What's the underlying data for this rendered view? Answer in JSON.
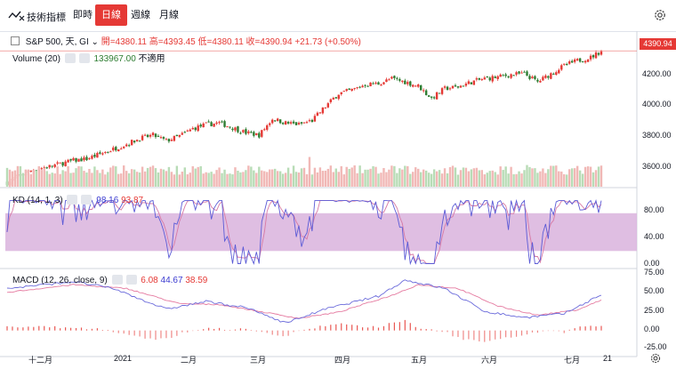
{
  "toolbar": {
    "indicators_label": "技術指標",
    "timeframes": [
      "即時",
      "日線",
      "週線",
      "月線"
    ],
    "active_timeframe": "日線"
  },
  "main_legend": {
    "symbol": "S&P 500, 天, GI",
    "open": "開=4380.11",
    "high": "高=4393.45",
    "low": "低=4380.11",
    "close": "收=4390.94",
    "change": "+21.73 (+0.50%)"
  },
  "volume_legend": {
    "name": "Volume (20)",
    "value": "133967.00",
    "extra": "不適用"
  },
  "kd_legend": {
    "name": "KD (14, 1, 3)",
    "k": "98.16",
    "d": "93.87"
  },
  "macd_legend": {
    "name": "MACD (12, 26, close, 9)",
    "v1": "6.08",
    "v2": "44.67",
    "v3": "38.59"
  },
  "price_tag": "4390.94",
  "colors": {
    "up": "#e53935",
    "down": "#2e7d32",
    "kd_k": "#5b5bd6",
    "kd_d": "#d77aa5",
    "kd_band": "#d9b3dd",
    "macd_line": "#6a6adb",
    "signal_line": "#e57aa0"
  },
  "chart_data": {
    "type": "candlestick",
    "x_ticks": [
      "十二月",
      "2021",
      "二月",
      "三月",
      "四月",
      "五月",
      "六月",
      "七月",
      "21"
    ],
    "price_axis": [
      "4200.00",
      "4000.00",
      "3800.00",
      "3600.00"
    ],
    "kd_axis": [
      "80.00",
      "40.00",
      "0.00"
    ],
    "macd_axis": [
      "75.00",
      "50.00",
      "25.00",
      "0.00",
      "-25.00"
    ],
    "price_range": [
      3560,
      4440
    ],
    "kd_band": [
      20,
      80
    ],
    "kd_range": [
      -5,
      115
    ],
    "macd_range": [
      -33,
      80
    ],
    "close_anchors": [
      [
        0,
        3585
      ],
      [
        5,
        3630
      ],
      [
        10,
        3665
      ],
      [
        15,
        3680
      ],
      [
        20,
        3700
      ],
      [
        25,
        3720
      ],
      [
        30,
        3730
      ],
      [
        35,
        3760
      ],
      [
        40,
        3790
      ],
      [
        45,
        3820
      ],
      [
        50,
        3855
      ],
      [
        55,
        3875
      ],
      [
        60,
        3840
      ],
      [
        65,
        3870
      ],
      [
        70,
        3915
      ],
      [
        75,
        3940
      ],
      [
        80,
        3950
      ],
      [
        85,
        3920
      ],
      [
        90,
        3890
      ],
      [
        95,
        3875
      ],
      [
        100,
        3975
      ],
      [
        105,
        3950
      ],
      [
        110,
        3940
      ],
      [
        115,
        3965
      ],
      [
        120,
        4050
      ],
      [
        125,
        4130
      ],
      [
        130,
        4150
      ],
      [
        135,
        4185
      ],
      [
        140,
        4190
      ],
      [
        145,
        4220
      ],
      [
        150,
        4200
      ],
      [
        155,
        4175
      ],
      [
        160,
        4100
      ],
      [
        165,
        4160
      ],
      [
        170,
        4170
      ],
      [
        175,
        4200
      ],
      [
        180,
        4220
      ],
      [
        185,
        4230
      ],
      [
        190,
        4245
      ],
      [
        195,
        4250
      ],
      [
        200,
        4200
      ],
      [
        205,
        4250
      ],
      [
        210,
        4300
      ],
      [
        215,
        4330
      ],
      [
        220,
        4350
      ],
      [
        224,
        4390
      ]
    ],
    "macd_anchors": [
      [
        0,
        55
      ],
      [
        25,
        64
      ],
      [
        40,
        55
      ],
      [
        60,
        28
      ],
      [
        75,
        38
      ],
      [
        90,
        30
      ],
      [
        105,
        10
      ],
      [
        120,
        28
      ],
      [
        140,
        45
      ],
      [
        150,
        66
      ],
      [
        165,
        55
      ],
      [
        180,
        25
      ],
      [
        195,
        17
      ],
      [
        210,
        22
      ],
      [
        224,
        47
      ]
    ],
    "signal_anchors": [
      [
        0,
        50
      ],
      [
        25,
        60
      ],
      [
        45,
        55
      ],
      [
        65,
        35
      ],
      [
        80,
        34
      ],
      [
        95,
        25
      ],
      [
        110,
        16
      ],
      [
        125,
        24
      ],
      [
        145,
        46
      ],
      [
        155,
        60
      ],
      [
        170,
        55
      ],
      [
        185,
        32
      ],
      [
        200,
        20
      ],
      [
        215,
        27
      ],
      [
        224,
        40
      ]
    ]
  }
}
